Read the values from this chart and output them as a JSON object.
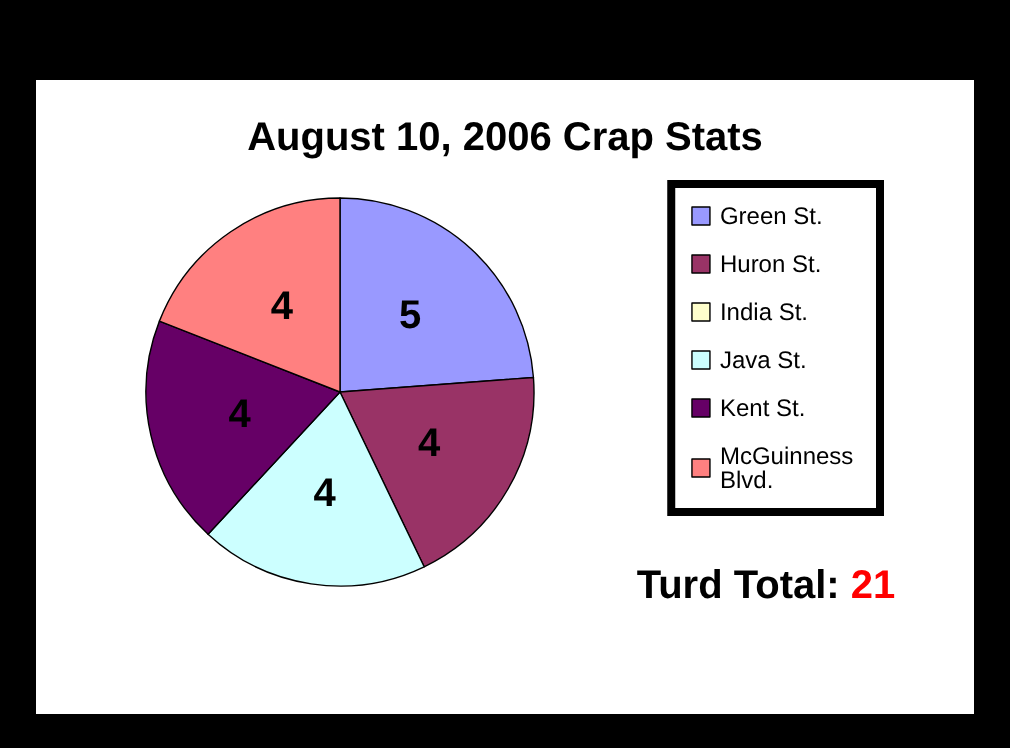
{
  "chart_data": {
    "type": "pie",
    "title": "August 10, 2006 Crap Stats",
    "categories": [
      "Green St.",
      "Huron St.",
      "India St.",
      "Java St.",
      "Kent St.",
      "McGuinness Blvd."
    ],
    "values": [
      5,
      4,
      0,
      4,
      4,
      4
    ],
    "colors": [
      "#9999ff",
      "#993366",
      "#ffffcc",
      "#ccffff",
      "#660066",
      "#ff8080"
    ],
    "value_labels": [
      "5",
      "4",
      null,
      "4",
      "4",
      "4"
    ],
    "legend": "right",
    "annotations": [
      "Turd Total: 21"
    ]
  }
}
